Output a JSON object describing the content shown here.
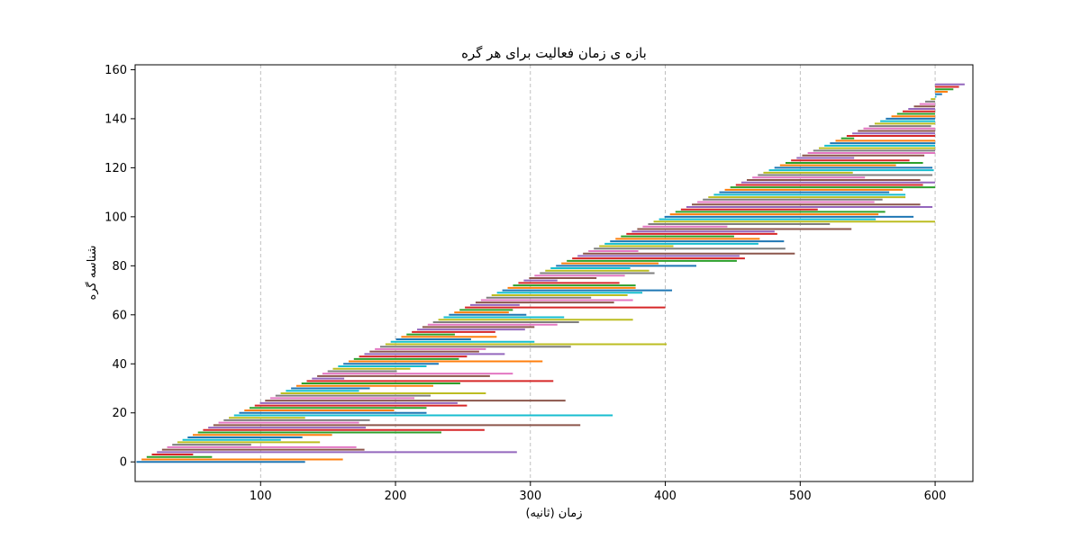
{
  "chart_data": {
    "type": "bar",
    "orientation": "horizontal-interval",
    "title": "بازه ی زمان فعالیت برای هر گره",
    "xlabel": "زمان (ثانیه)",
    "ylabel": "شناسه گره",
    "xlim": [
      7,
      628
    ],
    "ylim": [
      -8,
      162
    ],
    "xticks": [
      100,
      200,
      300,
      400,
      500,
      600
    ],
    "yticks": [
      0,
      20,
      40,
      60,
      80,
      100,
      120,
      140,
      160
    ],
    "grid": "x-dashed",
    "legend": "none",
    "series_count": 155,
    "node_ids": {
      "start": 0,
      "end": 154
    },
    "start_model": {
      "first": 8,
      "step": 3.78,
      "curvature": 0.00134
    },
    "end_values": [
      133,
      161,
      64,
      50,
      290,
      177,
      171,
      93,
      144,
      115,
      131,
      153,
      234,
      266,
      178,
      337,
      173,
      181,
      133,
      361,
      223,
      199,
      223,
      253,
      246,
      326,
      214,
      226,
      267,
      173,
      181,
      228,
      248,
      317,
      162,
      270,
      287,
      201,
      211,
      223,
      232,
      309,
      247,
      253,
      281,
      262,
      267,
      330,
      401,
      303,
      256,
      275,
      244,
      274,
      296,
      303,
      320,
      336,
      376,
      325,
      297,
      284,
      287,
      400,
      292,
      362,
      376,
      345,
      372,
      383,
      405,
      378,
      378,
      366,
      320,
      349,
      370,
      392,
      388,
      374,
      423,
      395,
      453,
      459,
      455,
      496,
      380,
      489,
      406,
      469,
      488,
      470,
      451,
      483,
      481,
      538,
      446,
      522,
      600,
      556,
      584,
      558,
      563,
      513,
      598,
      589,
      555,
      561,
      578,
      578,
      566,
      576,
      600,
      591,
      600,
      589,
      548,
      598,
      539,
      599,
      598,
      571,
      591,
      581,
      540,
      592,
      600,
      600,
      600,
      600,
      600,
      600,
      540,
      600,
      600,
      600,
      600,
      597,
      600,
      600,
      600,
      600,
      600,
      600,
      600,
      600,
      600,
      600,
      600,
      600,
      600,
      600,
      600,
      600,
      600
    ],
    "colors": [
      "#1f77b4",
      "#ff7f0e",
      "#2ca02c",
      "#d62728",
      "#9467bd",
      "#8c564b",
      "#e377c2",
      "#7f7f7f",
      "#bcbd22",
      "#17becf"
    ]
  }
}
